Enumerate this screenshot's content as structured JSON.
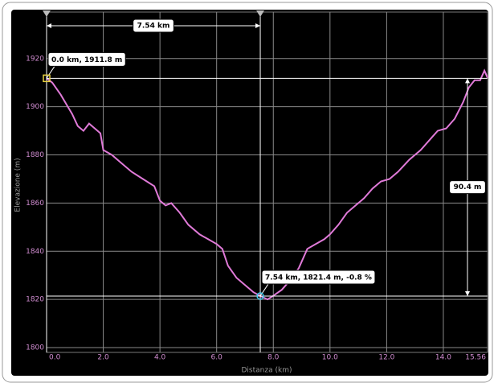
{
  "chart_data": {
    "type": "line",
    "y_label": "Elevazione (m)",
    "x_label": "Distanza (km)",
    "x": [
      0.0,
      0.2,
      0.5,
      0.7,
      0.9,
      1.1,
      1.3,
      1.5,
      1.7,
      1.9,
      2.0,
      2.3,
      2.6,
      3.0,
      3.4,
      3.8,
      4.0,
      4.2,
      4.4,
      4.7,
      5.0,
      5.4,
      5.7,
      6.0,
      6.2,
      6.4,
      6.7,
      7.0,
      7.3,
      7.54,
      7.8,
      8.0,
      8.3,
      8.6,
      8.9,
      9.2,
      9.5,
      9.8,
      10.0,
      10.3,
      10.6,
      10.9,
      11.2,
      11.5,
      11.8,
      12.1,
      12.4,
      12.8,
      13.2,
      13.5,
      13.8,
      14.1,
      14.4,
      14.7,
      14.9,
      15.1,
      15.3,
      15.45,
      15.56
    ],
    "values": [
      1911.8,
      1910,
      1905,
      1901,
      1897,
      1892,
      1890,
      1893,
      1891,
      1889,
      1882,
      1880,
      1877,
      1873,
      1870,
      1867,
      1861,
      1859,
      1860,
      1856,
      1851,
      1847,
      1845,
      1843,
      1841,
      1834,
      1829,
      1826,
      1823,
      1821.4,
      1820,
      1821.5,
      1824,
      1828,
      1833,
      1841,
      1843,
      1845,
      1847,
      1851,
      1856,
      1859,
      1862,
      1866,
      1869,
      1870,
      1873,
      1878,
      1882,
      1886,
      1890,
      1891,
      1895,
      1902,
      1908,
      1911,
      1911,
      1915,
      1912
    ],
    "color": "#e07ad8",
    "xlim": [
      0,
      15.56
    ],
    "ylim": [
      1798,
      1939.3
    ],
    "xticks": [
      {
        "value": 0,
        "label": "0.0"
      },
      {
        "value": 2,
        "label": "2.0"
      },
      {
        "value": 4,
        "label": "4.0"
      },
      {
        "value": 6,
        "label": "6.0"
      },
      {
        "value": 8,
        "label": "8.0"
      },
      {
        "value": 10,
        "label": "10.0"
      },
      {
        "value": 12,
        "label": "12.0"
      },
      {
        "value": 14,
        "label": "14.0"
      },
      15.56
    ],
    "yticks": [
      1800,
      1820,
      1840,
      1860,
      1880,
      1900,
      1920
    ],
    "grid": true,
    "cursors": [
      {
        "text": "0.0 km, 1911.8 m",
        "x": 0,
        "y": 1911.8
      },
      {
        "text": "7.54 km, 1821.4 m, -0.8 %",
        "x": 7.54,
        "y": 1821.4
      }
    ],
    "distance_label": "7.54 km",
    "elevation_diff_label": "90.4 m"
  }
}
